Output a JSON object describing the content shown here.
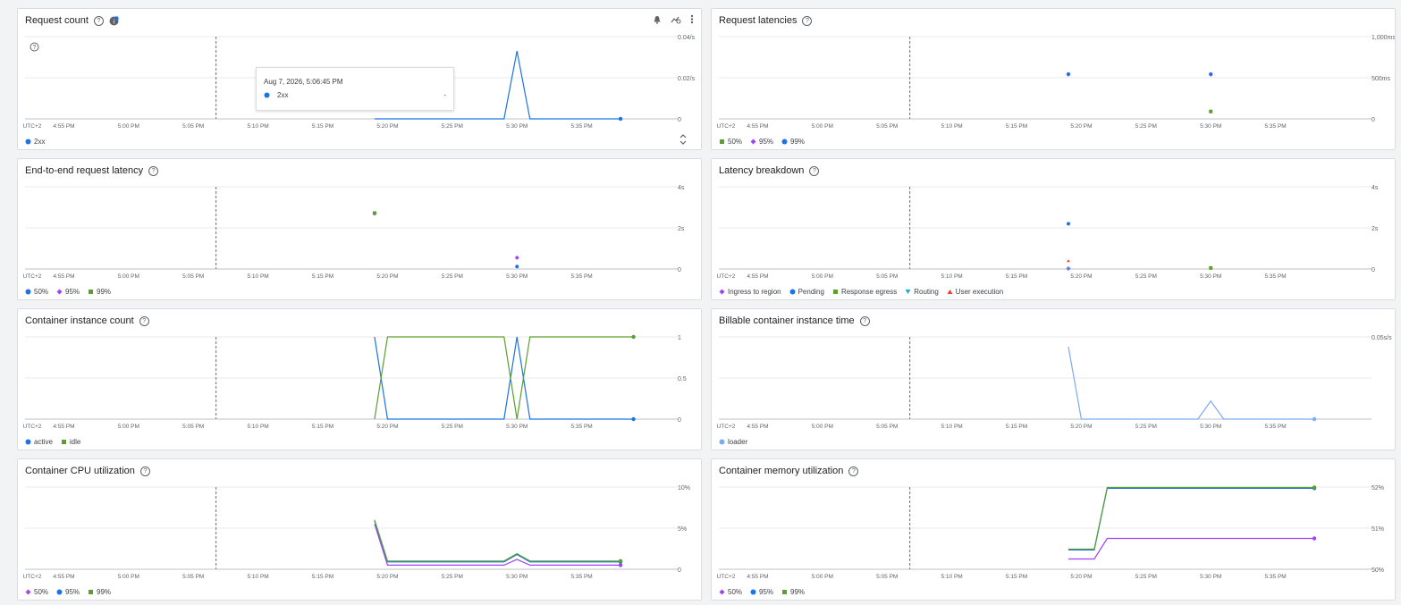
{
  "xticks": [
    "UTC+2",
    "4:55 PM",
    "5:00 PM",
    "5:05 PM",
    "5:10 PM",
    "5:15 PM",
    "5:20 PM",
    "5:25 PM",
    "5:30 PM",
    "5:35 PM"
  ],
  "colors": {
    "blue": "#1a73e8",
    "green": "#5aa02c",
    "purple": "#a142f4",
    "teal": "#12b5cb",
    "red": "#ea4335",
    "grid": "#e8eaed",
    "dash": "#80868b"
  },
  "tooltip": {
    "time": "Aug 7, 2026, 5:06:45 PM",
    "series": "2xx",
    "value": "-"
  },
  "panels": {
    "request_count": {
      "title": "Request count",
      "yticks": [
        "0.04/s",
        "0.02/s",
        "0"
      ],
      "legend": [
        "2xx"
      ]
    },
    "request_latencies": {
      "title": "Request latencies",
      "yticks": [
        "1,000ms",
        "500ms",
        "0"
      ],
      "legend": [
        "50%",
        "95%",
        "99%"
      ]
    },
    "e2e_latency": {
      "title": "End-to-end request latency",
      "yticks": [
        "4s",
        "2s",
        "0"
      ],
      "legend": [
        "50%",
        "95%",
        "99%"
      ]
    },
    "latency_breakdown": {
      "title": "Latency breakdown",
      "yticks": [
        "4s",
        "2s",
        "0"
      ],
      "legend": [
        "Ingress to region",
        "Pending",
        "Response egress",
        "Routing",
        "User execution"
      ]
    },
    "instance_count": {
      "title": "Container instance count",
      "yticks": [
        "1",
        "0.5",
        "0"
      ],
      "legend": [
        "active",
        "idle"
      ]
    },
    "billable_time": {
      "title": "Billable container instance time",
      "yticks": [
        "0.05s/s",
        "",
        ""
      ],
      "legend": [
        "loader"
      ]
    },
    "cpu_util": {
      "title": "Container CPU utilization",
      "yticks": [
        "10%",
        "5%",
        "0"
      ],
      "legend": [
        "50%",
        "95%",
        "99%"
      ]
    },
    "mem_util": {
      "title": "Container memory utilization",
      "yticks": [
        "52%",
        "51%",
        "50%"
      ],
      "legend": [
        "50%",
        "95%",
        "99%"
      ]
    }
  },
  "chart_data": [
    {
      "type": "line",
      "title": "Request count",
      "x": [
        "5:19 PM",
        "5:20 PM",
        "5:29 PM",
        "5:30 PM",
        "5:31 PM",
        "5:38 PM"
      ],
      "series": [
        {
          "name": "2xx",
          "values": [
            0,
            0,
            0,
            0.033,
            0,
            0
          ]
        }
      ],
      "ylim": [
        0,
        0.04
      ]
    },
    {
      "type": "scatter",
      "title": "Request latencies",
      "series": [
        {
          "name": "50%",
          "points": [
            [
              "5:30 PM",
              90
            ]
          ]
        },
        {
          "name": "95%",
          "points": [
            [
              "5:19 PM",
              540
            ],
            [
              "5:30 PM",
              540
            ]
          ]
        },
        {
          "name": "99%",
          "points": [
            [
              "5:19 PM",
              545
            ],
            [
              "5:30 PM",
              545
            ]
          ]
        }
      ],
      "ylim": [
        0,
        1000
      ]
    },
    {
      "type": "scatter",
      "title": "End-to-end request latency",
      "series": [
        {
          "name": "50%",
          "points": [
            [
              "5:30 PM",
              0.12
            ]
          ]
        },
        {
          "name": "95%",
          "points": [
            [
              "5:19 PM",
              2.7
            ],
            [
              "5:30 PM",
              0.55
            ]
          ]
        },
        {
          "name": "99%",
          "points": [
            [
              "5:19 PM",
              2.72
            ]
          ]
        }
      ],
      "ylim": [
        0,
        4
      ]
    },
    {
      "type": "scatter",
      "title": "Latency breakdown",
      "series": [
        {
          "name": "Ingress to region",
          "points": [
            [
              "5:19 PM",
              0.02
            ]
          ]
        },
        {
          "name": "Pending",
          "points": [
            [
              "5:19 PM",
              2.2
            ]
          ]
        },
        {
          "name": "Response egress",
          "points": [
            [
              "5:30 PM",
              0.05
            ]
          ]
        },
        {
          "name": "Routing",
          "points": [
            [
              "5:19 PM",
              0.01
            ]
          ]
        },
        {
          "name": "User execution",
          "points": [
            [
              "5:19 PM",
              0.4
            ]
          ]
        }
      ],
      "ylim": [
        0,
        4
      ]
    },
    {
      "type": "line",
      "title": "Container instance count",
      "x": [
        "5:19 PM",
        "5:20 PM",
        "5:29 PM",
        "5:30 PM",
        "5:31 PM",
        "5:39 PM"
      ],
      "series": [
        {
          "name": "active",
          "values": [
            1,
            0,
            0,
            1,
            0,
            0
          ]
        },
        {
          "name": "idle",
          "values": [
            0,
            1,
            1,
            0,
            1,
            1
          ]
        }
      ],
      "ylim": [
        0,
        1
      ]
    },
    {
      "type": "line",
      "title": "Billable container instance time",
      "x": [
        "5:19 PM",
        "5:20 PM",
        "5:29 PM",
        "5:30 PM",
        "5:31 PM",
        "5:38 PM"
      ],
      "series": [
        {
          "name": "loader",
          "values": [
            0.044,
            0,
            0,
            0.011,
            0,
            0
          ]
        }
      ],
      "ylim": [
        0,
        0.05
      ]
    },
    {
      "type": "line",
      "title": "Container CPU utilization",
      "x": [
        "5:19 PM",
        "5:20 PM",
        "5:29 PM",
        "5:30 PM",
        "5:31 PM",
        "5:38 PM"
      ],
      "series": [
        {
          "name": "50%",
          "values": [
            5.5,
            0.5,
            0.5,
            1.2,
            0.5,
            0.5
          ]
        },
        {
          "name": "95%",
          "values": [
            5.9,
            0.9,
            0.9,
            1.8,
            0.9,
            0.9
          ]
        },
        {
          "name": "99%",
          "values": [
            6.0,
            1.0,
            1.0,
            1.9,
            1.0,
            1.0
          ]
        }
      ],
      "ylim": [
        0,
        10
      ]
    },
    {
      "type": "line",
      "title": "Container memory utilization",
      "x": [
        "5:19 PM",
        "5:21 PM",
        "5:22 PM",
        "5:38 PM"
      ],
      "series": [
        {
          "name": "50%",
          "values": [
            50.25,
            50.25,
            50.75,
            50.75
          ]
        },
        {
          "name": "95%",
          "values": [
            50.47,
            50.47,
            51.97,
            51.97
          ]
        },
        {
          "name": "99%",
          "values": [
            50.49,
            50.49,
            51.99,
            51.99
          ]
        }
      ],
      "ylim": [
        50,
        52
      ]
    }
  ]
}
